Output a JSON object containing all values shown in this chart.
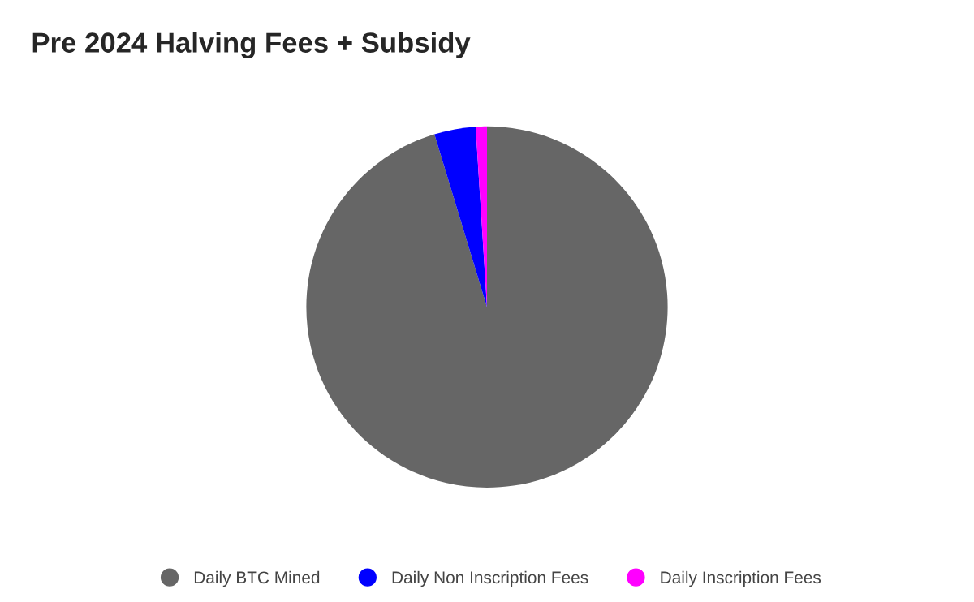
{
  "chart_data": {
    "type": "pie",
    "title": "Pre 2024 Halving Fees + Subsidy",
    "categories": [
      "Daily BTC Mined",
      "Daily Non Inscription Fees",
      "Daily Inscription Fees"
    ],
    "values": [
      95.3,
      3.7,
      1.0
    ],
    "colors": [
      "#666666",
      "#0000ff",
      "#ff00ff"
    ],
    "legend": "bottom"
  }
}
